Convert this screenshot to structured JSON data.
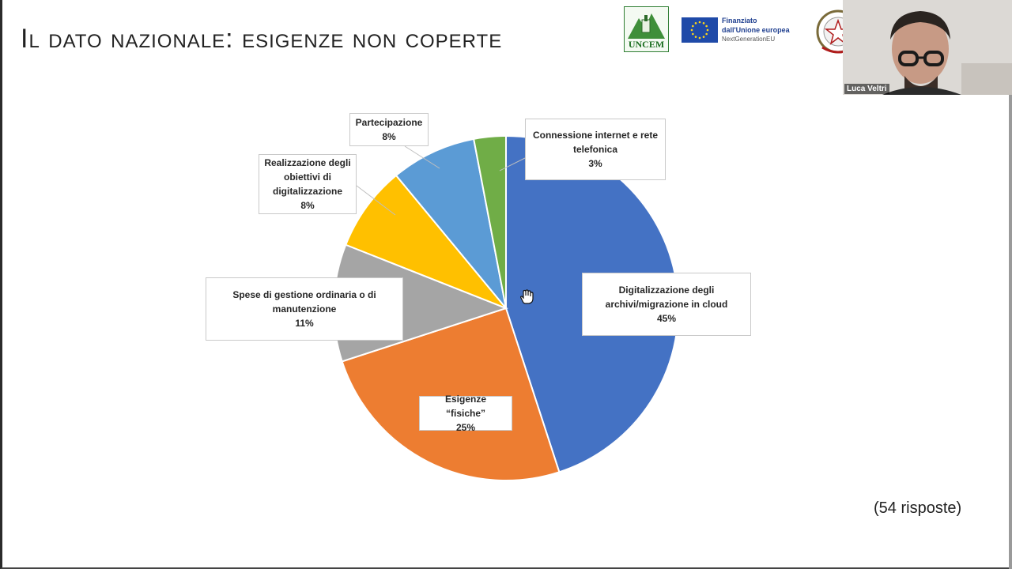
{
  "slide": {
    "title": "Il dato nazionale: esigenze non coperte",
    "note": "(54 risposte)"
  },
  "logos": {
    "uncem_text": "UNCEM",
    "eu_line1": "Finanziato",
    "eu_line2": "dall'Unione europea",
    "eu_line3": "NextGenerationEU"
  },
  "video": {
    "participant_name": "Luca Veltri"
  },
  "colors": {
    "blue": "#4472C4",
    "orange": "#ED7D31",
    "gray": "#A5A5A5",
    "yellow": "#FFC000",
    "light_blue": "#5B9BD5",
    "green": "#70AD47"
  },
  "chart_data": {
    "type": "pie",
    "start": "12 o'clock",
    "direction": "clockwise",
    "slices": [
      {
        "label": "Digitalizzazione degli\narchivi/migrazione in cloud",
        "value": 45,
        "display": "45%",
        "color": "#4472C4"
      },
      {
        "label": "Esigenze “fisiche”",
        "value": 25,
        "display": "25%",
        "color": "#ED7D31"
      },
      {
        "label": "Spese di gestione ordinaria o di\nmanutenzione",
        "value": 11,
        "display": "11%",
        "color": "#A5A5A5"
      },
      {
        "label": "Realizzazione degli\nobiettivi di\ndigitalizzazione",
        "value": 8,
        "display": "8%",
        "color": "#FFC000"
      },
      {
        "label": "Partecipazione",
        "value": 8,
        "display": "8%",
        "color": "#5B9BD5"
      },
      {
        "label": "Connessione internet e rete\ntelefonica",
        "value": 3,
        "display": "3%",
        "color": "#70AD47"
      }
    ]
  }
}
